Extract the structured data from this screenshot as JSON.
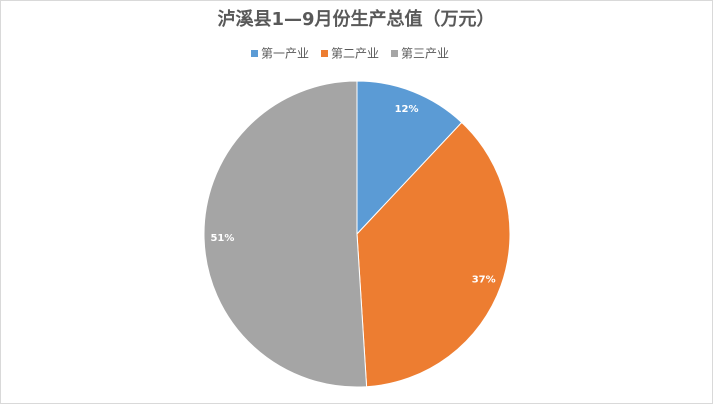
{
  "chart_data": {
    "type": "pie",
    "title": "泸溪县1—9月份生产总值（万元）",
    "categories": [
      "第一产业",
      "第二产业",
      "第三产业"
    ],
    "values": [
      12,
      37,
      51
    ],
    "value_labels": [
      "12%",
      "37%",
      "51%"
    ],
    "colors": [
      "#5b9bd5",
      "#ed7d31",
      "#a5a5a5"
    ],
    "legend": "top"
  }
}
